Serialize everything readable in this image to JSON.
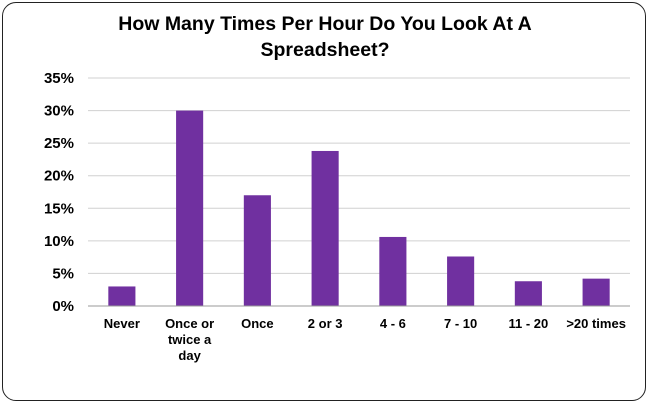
{
  "chart_data": {
    "type": "bar",
    "title_lines": [
      "How Many Times Per Hour Do You Look At A",
      "Spreadsheet?"
    ],
    "categories": [
      [
        "Never"
      ],
      [
        "Once or",
        "twice a",
        "day"
      ],
      [
        "Once"
      ],
      [
        "2 or 3"
      ],
      [
        "4 - 6"
      ],
      [
        "7 - 10"
      ],
      [
        "11 - 20"
      ],
      [
        ">20 times"
      ]
    ],
    "values": [
      3,
      30,
      17,
      23.8,
      10.6,
      7.6,
      3.8,
      4.2
    ],
    "ylim": [
      0,
      35
    ],
    "yticks": [
      0,
      5,
      10,
      15,
      20,
      25,
      30,
      35
    ],
    "ytick_labels": [
      "0%",
      "5%",
      "10%",
      "15%",
      "20%",
      "25%",
      "30%",
      "35%"
    ],
    "bar_color": "#7030a0",
    "grid": true,
    "legend": "none"
  }
}
